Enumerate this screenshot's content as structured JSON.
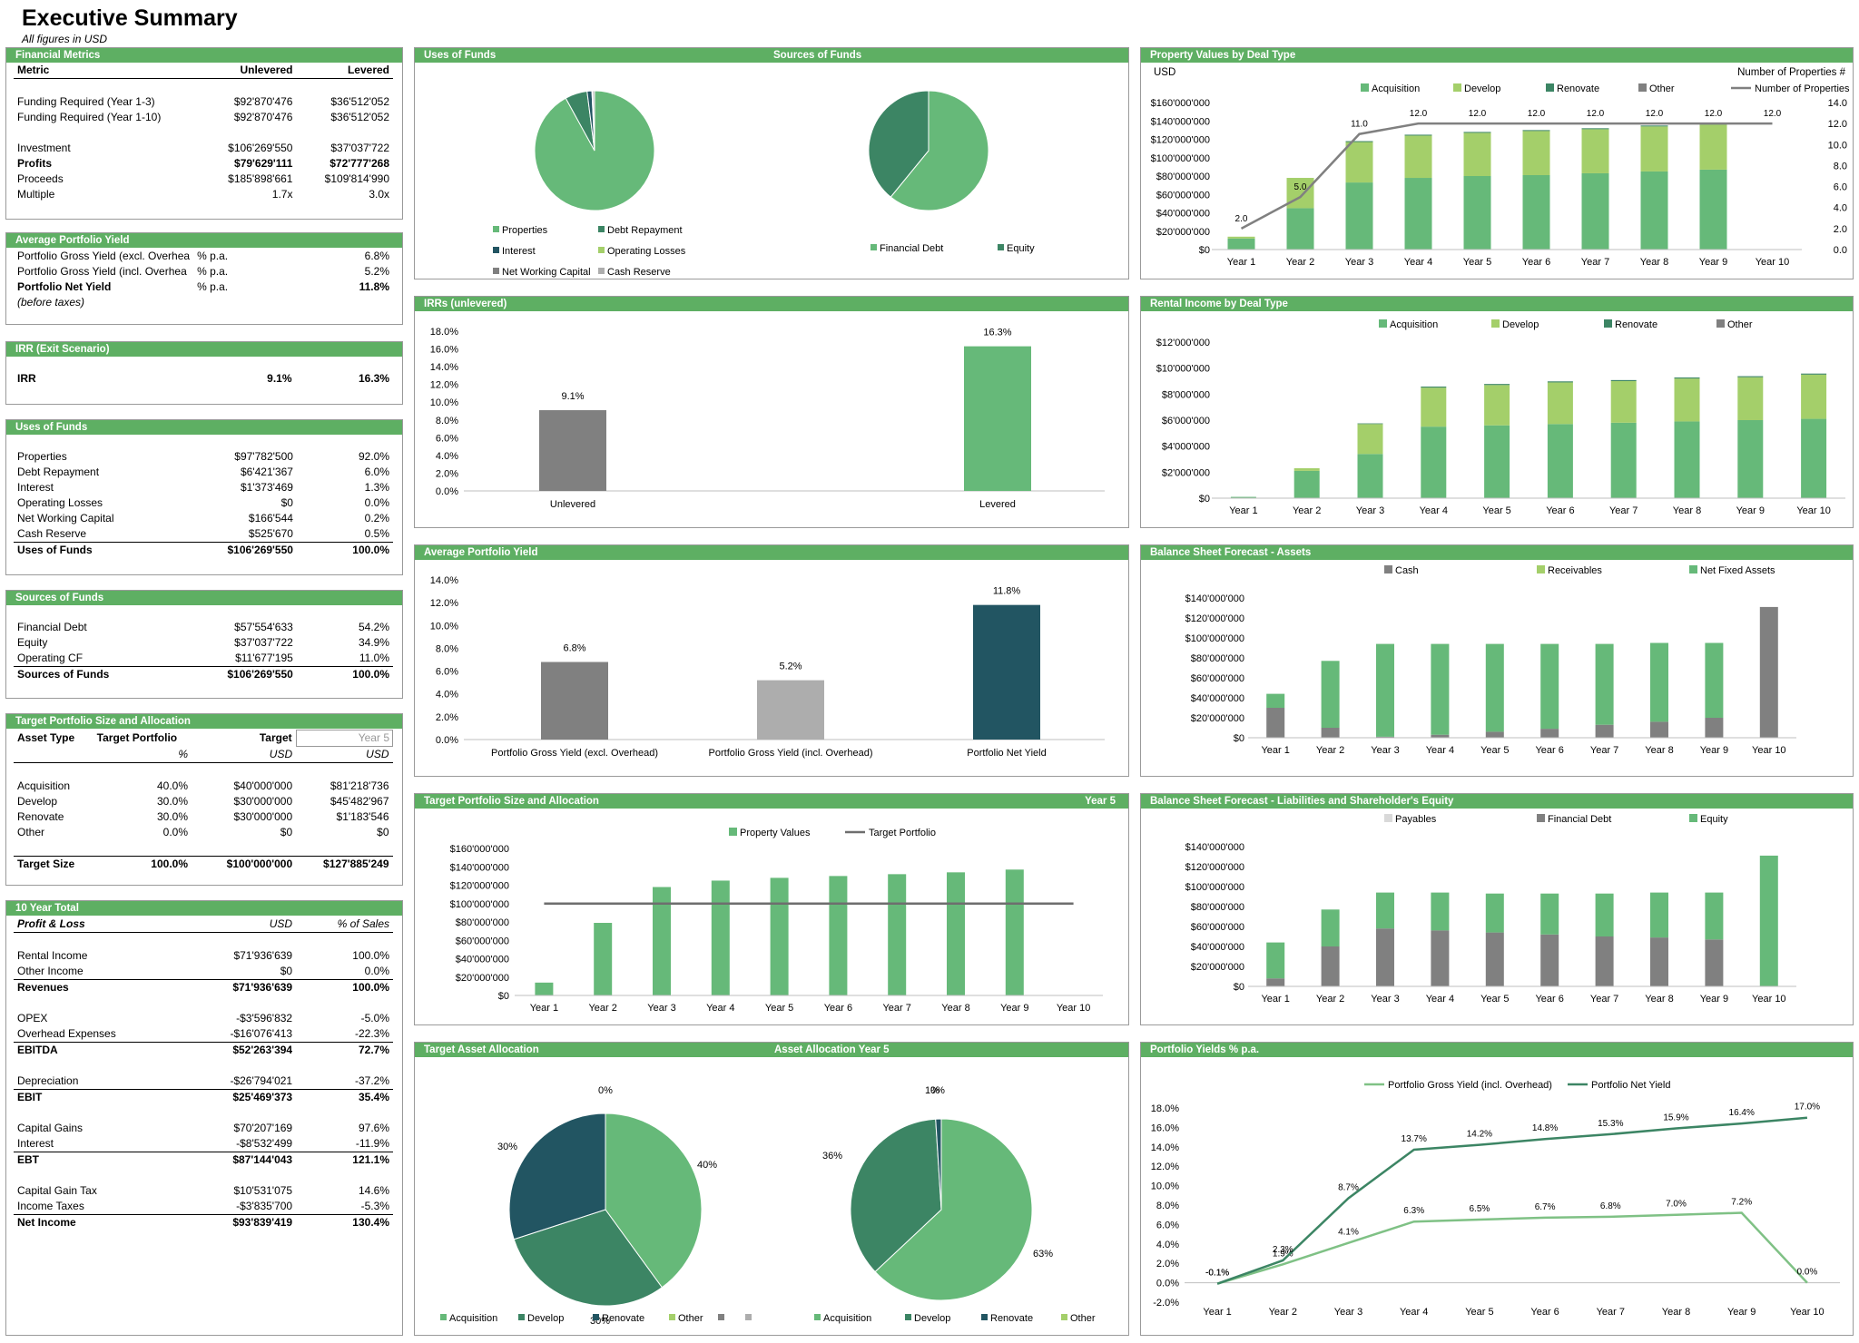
{
  "page": {
    "title": "Executive Summary",
    "subtitle": "All figures in USD"
  },
  "colors": {
    "header_green": "#5eaf63",
    "acquisition": "#66b979",
    "develop": "#a4cf6a",
    "renovate": "#3c8564",
    "other": "#808080",
    "dark_teal": "#225562",
    "light_grey": "#adadad"
  },
  "financial_metrics": {
    "title": "Financial Metrics",
    "columns": [
      "Metric",
      "Unlevered",
      "Levered"
    ],
    "rows": [
      {
        "label": "Funding Required (Year 1-3)",
        "u": "$92'870'476",
        "l": "$36'512'052"
      },
      {
        "label": "Funding Required (Year 1-10)",
        "u": "$92'870'476",
        "l": "$36'512'052"
      },
      {
        "label": "Investment",
        "u": "$106'269'550",
        "l": "$37'037'722"
      },
      {
        "label": "Profits",
        "u": "$79'629'111",
        "l": "$72'777'268"
      },
      {
        "label": "Proceeds",
        "u": "$185'898'661",
        "l": "$109'814'990"
      },
      {
        "label": "Multiple",
        "u": "1.7x",
        "l": "3.0x"
      }
    ]
  },
  "avg_yield": {
    "title": "Average Portfolio Yield",
    "rows": [
      {
        "label": "Portfolio Gross Yield (excl. Overhea",
        "unit": "% p.a.",
        "v": "6.8%"
      },
      {
        "label": "Portfolio Gross Yield (incl. Overhea",
        "unit": "% p.a.",
        "v": "5.2%"
      },
      {
        "label": "Portfolio Net Yield",
        "unit": "% p.a.",
        "v": "11.8%"
      }
    ],
    "note": "(before taxes)"
  },
  "irr_exit": {
    "title": "IRR (Exit Scenario)",
    "label": "IRR",
    "u": "9.1%",
    "l": "16.3%"
  },
  "uses": {
    "title": "Uses of Funds",
    "rows": [
      {
        "label": "Properties",
        "v": "$97'782'500",
        "p": "92.0%"
      },
      {
        "label": "Debt Repayment",
        "v": "$6'421'367",
        "p": "6.0%"
      },
      {
        "label": "Interest",
        "v": "$1'373'469",
        "p": "1.3%"
      },
      {
        "label": "Operating Losses",
        "v": "$0",
        "p": "0.0%"
      },
      {
        "label": "Net Working Capital",
        "v": "$166'544",
        "p": "0.2%"
      },
      {
        "label": "Cash Reserve",
        "v": "$525'670",
        "p": "0.5%"
      }
    ],
    "total": {
      "label": "Uses of Funds",
      "v": "$106'269'550",
      "p": "100.0%"
    }
  },
  "sources": {
    "title": "Sources of Funds",
    "rows": [
      {
        "label": "Financial Debt",
        "v": "$57'554'633",
        "p": "54.2%"
      },
      {
        "label": "Equity",
        "v": "$37'037'722",
        "p": "34.9%"
      },
      {
        "label": "Operating CF",
        "v": "$11'677'195",
        "p": "11.0%"
      }
    ],
    "total": {
      "label": "Sources of Funds",
      "v": "$106'269'550",
      "p": "100.0%"
    }
  },
  "target": {
    "title": "Target Portfolio Size and Allocation",
    "h1": [
      "Asset Type",
      "Target Portfolio",
      "Target",
      "Year 5"
    ],
    "h2": [
      "%",
      "USD",
      "USD"
    ],
    "rows": [
      {
        "label": "Acquisition",
        "p": "40.0%",
        "t": "$40'000'000",
        "y": "$81'218'736"
      },
      {
        "label": "Develop",
        "p": "30.0%",
        "t": "$30'000'000",
        "y": "$45'482'967"
      },
      {
        "label": "Renovate",
        "p": "30.0%",
        "t": "$30'000'000",
        "y": "$1'183'546"
      },
      {
        "label": "Other",
        "p": "0.0%",
        "t": "$0",
        "y": "$0"
      }
    ],
    "total": {
      "label": "Target Size",
      "p": "100.0%",
      "t": "$100'000'000",
      "y": "$127'885'249"
    }
  },
  "ten_year": {
    "title": "10 Year Total",
    "h": [
      "Profit & Loss",
      "USD",
      "% of Sales"
    ],
    "groups": [
      {
        "rows": [
          {
            "label": "Rental Income",
            "v": "$71'936'639",
            "p": "100.0%"
          },
          {
            "label": "Other Income",
            "v": "$0",
            "p": "0.0%"
          }
        ],
        "total": {
          "label": "Revenues",
          "v": "$71'936'639",
          "p": "100.0%"
        }
      },
      {
        "rows": [
          {
            "label": "OPEX",
            "v": "-$3'596'832",
            "p": "-5.0%"
          },
          {
            "label": "Overhead Expenses",
            "v": "-$16'076'413",
            "p": "-22.3%"
          }
        ],
        "total": {
          "label": "EBITDA",
          "v": "$52'263'394",
          "p": "72.7%"
        }
      },
      {
        "rows": [
          {
            "label": "Depreciation",
            "v": "-$26'794'021",
            "p": "-37.2%"
          }
        ],
        "total": {
          "label": "EBIT",
          "v": "$25'469'373",
          "p": "35.4%"
        }
      },
      {
        "rows": [
          {
            "label": "Capital Gains",
            "v": "$70'207'169",
            "p": "97.6%"
          },
          {
            "label": "Interest",
            "v": "-$8'532'499",
            "p": "-11.9%"
          }
        ],
        "total": {
          "label": "EBT",
          "v": "$87'144'043",
          "p": "121.1%"
        }
      },
      {
        "rows": [
          {
            "label": "Capital Gain Tax",
            "v": "$10'531'075",
            "p": "14.6%"
          },
          {
            "label": "Income Taxes",
            "v": "-$3'835'700",
            "p": "-5.3%"
          }
        ],
        "total": {
          "label": "Net Income",
          "v": "$93'839'419",
          "p": "130.4%"
        }
      }
    ]
  },
  "chart_titles": {
    "uses_sources": "Uses of Funds",
    "uses_sources_right": "Sources of Funds",
    "property_values": "Property Values by Deal Type",
    "irrs": "IRRs (unlevered)",
    "rental": "Rental Income by Deal Type",
    "avg_yield": "Average Portfolio Yield",
    "bs_assets": "Balance Sheet Forecast - Assets",
    "target_alloc": "Target Portfolio Size and Allocation",
    "target_alloc_right": "Year 5",
    "bs_liab": "Balance Sheet Forecast - Liabilities and Shareholder's Equity",
    "asset_alloc": "Target Asset Allocation",
    "asset_alloc_right": "Asset Allocation Year 5",
    "yields": "Portfolio Yields % p.a."
  },
  "chart_data": [
    {
      "id": "uses_pie",
      "type": "pie",
      "labels": [
        "Properties",
        "Debt Repayment",
        "Interest",
        "Operating Losses",
        "Net Working Capital",
        "Cash Reserve"
      ],
      "values": [
        92.0,
        6.0,
        1.3,
        0.0,
        0.2,
        0.5
      ],
      "colors": [
        "#66b979",
        "#3c8564",
        "#225562",
        "#a4cf6a",
        "#808080",
        "#adadad"
      ]
    },
    {
      "id": "sources_pie",
      "type": "pie",
      "labels": [
        "Financial Debt",
        "Equity"
      ],
      "values": [
        60.9,
        39.1
      ],
      "colors": [
        "#66b979",
        "#3c8564"
      ]
    },
    {
      "id": "property_values",
      "type": "bar",
      "ylabel_left": "USD",
      "ylabel_right": "Number of Properties #",
      "categories": [
        "Year 1",
        "Year 2",
        "Year 3",
        "Year 4",
        "Year 5",
        "Year 6",
        "Year 7",
        "Year 8",
        "Year 9",
        "Year 10"
      ],
      "series": [
        {
          "name": "Acquisition",
          "values": [
            12,
            45,
            73,
            78,
            80,
            81,
            83,
            85,
            87,
            0
          ],
          "color": "#66b979"
        },
        {
          "name": "Develop",
          "values": [
            2,
            33,
            44,
            46,
            47,
            48,
            48,
            49,
            49,
            0
          ],
          "color": "#a4cf6a"
        },
        {
          "name": "Renovate",
          "values": [
            0,
            0,
            1,
            1,
            1,
            1,
            1,
            1,
            1,
            0
          ],
          "color": "#3c8564"
        },
        {
          "name": "Other",
          "values": [
            0,
            0,
            0,
            0,
            0,
            0,
            0,
            0,
            0,
            0
          ],
          "color": "#808080"
        }
      ],
      "line": {
        "name": "Number of Properties",
        "values": [
          2.0,
          5.0,
          11.0,
          12.0,
          12.0,
          12.0,
          12.0,
          12.0,
          12.0,
          12.0
        ],
        "labels": [
          "2.0",
          "5.0",
          "11.0",
          "12.0",
          "12.0",
          "12.0",
          "12.0",
          "12.0",
          "12.0",
          "12.0"
        ],
        "color": "#808080"
      },
      "yticks": [
        "$0",
        "$20'000'000",
        "$40'000'000",
        "$60'000'000",
        "$80'000'000",
        "$100'000'000",
        "$120'000'000",
        "$140'000'000",
        "$160'000'000"
      ],
      "ylim": [
        0,
        160
      ],
      "y2ticks": [
        "0.0",
        "2.0",
        "4.0",
        "6.0",
        "8.0",
        "10.0",
        "12.0",
        "14.0"
      ],
      "y2lim": [
        0,
        14
      ]
    },
    {
      "id": "irrs",
      "type": "bar",
      "categories": [
        "Unlevered",
        "Levered"
      ],
      "values": [
        9.1,
        16.3
      ],
      "labels": [
        "9.1%",
        "16.3%"
      ],
      "colors": [
        "#808080",
        "#66b979"
      ],
      "yticks": [
        "0.0%",
        "2.0%",
        "4.0%",
        "6.0%",
        "8.0%",
        "10.0%",
        "12.0%",
        "14.0%",
        "16.0%",
        "18.0%"
      ],
      "ylim": [
        0,
        18
      ]
    },
    {
      "id": "rental",
      "type": "bar",
      "categories": [
        "Year 1",
        "Year 2",
        "Year 3",
        "Year 4",
        "Year 5",
        "Year 6",
        "Year 7",
        "Year 8",
        "Year 9",
        "Year 10"
      ],
      "series": [
        {
          "name": "Acquisition",
          "values": [
            0.1,
            2.1,
            3.4,
            5.5,
            5.6,
            5.7,
            5.8,
            5.9,
            6.0,
            6.1
          ],
          "color": "#66b979"
        },
        {
          "name": "Develop",
          "values": [
            0,
            0.2,
            2.3,
            3.0,
            3.1,
            3.2,
            3.2,
            3.3,
            3.3,
            3.4
          ],
          "color": "#a4cf6a"
        },
        {
          "name": "Renovate",
          "values": [
            0,
            0,
            0.05,
            0.08,
            0.08,
            0.08,
            0.08,
            0.08,
            0.08,
            0.08
          ],
          "color": "#3c8564"
        },
        {
          "name": "Other",
          "values": [
            0,
            0,
            0,
            0,
            0,
            0,
            0,
            0,
            0,
            0
          ],
          "color": "#808080"
        }
      ],
      "yticks": [
        "$0",
        "$2'000'000",
        "$4'000'000",
        "$6'000'000",
        "$8'000'000",
        "$10'000'000",
        "$12'000'000"
      ],
      "ylim": [
        0,
        12
      ]
    },
    {
      "id": "avg_yield_chart",
      "type": "bar",
      "categories": [
        "Portfolio Gross Yield (excl. Overhead)",
        "Portfolio Gross Yield (incl. Overhead)",
        "Portfolio Net Yield"
      ],
      "values": [
        6.8,
        5.2,
        11.8
      ],
      "labels": [
        "6.8%",
        "5.2%",
        "11.8%"
      ],
      "colors": [
        "#808080",
        "#adadad",
        "#225562"
      ],
      "yticks": [
        "0.0%",
        "2.0%",
        "4.0%",
        "6.0%",
        "8.0%",
        "10.0%",
        "12.0%",
        "14.0%"
      ],
      "ylim": [
        0,
        14
      ]
    },
    {
      "id": "bs_assets",
      "type": "bar",
      "categories": [
        "Year 1",
        "Year 2",
        "Year 3",
        "Year 4",
        "Year 5",
        "Year 6",
        "Year 7",
        "Year 8",
        "Year 9",
        "Year 10"
      ],
      "series": [
        {
          "name": "Cash",
          "values": [
            30,
            10,
            1,
            3,
            6,
            9,
            13,
            16,
            20,
            131
          ],
          "color": "#808080"
        },
        {
          "name": "Receivables",
          "values": [
            0,
            0,
            0,
            0,
            0,
            0,
            0,
            0,
            0,
            0
          ],
          "color": "#a4cf6a"
        },
        {
          "name": "Net Fixed Assets",
          "values": [
            14,
            67,
            93,
            91,
            88,
            85,
            81,
            79,
            75,
            0
          ],
          "color": "#66b979"
        }
      ],
      "yticks": [
        "$0",
        "$20'000'000",
        "$40'000'000",
        "$60'000'000",
        "$80'000'000",
        "$100'000'000",
        "$120'000'000",
        "$140'000'000"
      ],
      "ylim": [
        0,
        140
      ]
    },
    {
      "id": "target_alloc",
      "type": "bar",
      "categories": [
        "Year 1",
        "Year 2",
        "Year 3",
        "Year 4",
        "Year 5",
        "Year 6",
        "Year 7",
        "Year 8",
        "Year 9",
        "Year 10"
      ],
      "series": [
        {
          "name": "Property Values",
          "values": [
            14,
            79,
            118,
            125,
            128,
            130,
            132,
            134,
            137,
            0
          ],
          "color": "#66b979"
        }
      ],
      "line": {
        "name": "Target Portfolio",
        "values": [
          100,
          100,
          100,
          100,
          100,
          100,
          100,
          100,
          100,
          100
        ],
        "color": "#6e6e6e"
      },
      "yticks": [
        "$0",
        "$20'000'000",
        "$40'000'000",
        "$60'000'000",
        "$80'000'000",
        "$100'000'000",
        "$120'000'000",
        "$140'000'000",
        "$160'000'000"
      ],
      "ylim": [
        0,
        160
      ]
    },
    {
      "id": "bs_liab",
      "type": "bar",
      "categories": [
        "Year 1",
        "Year 2",
        "Year 3",
        "Year 4",
        "Year 5",
        "Year 6",
        "Year 7",
        "Year 8",
        "Year 9",
        "Year 10"
      ],
      "series": [
        {
          "name": "Payables",
          "values": [
            0,
            0,
            0,
            0,
            0,
            0,
            0,
            0,
            0,
            0
          ],
          "color": "#d9d9d9"
        },
        {
          "name": "Financial Debt",
          "values": [
            8,
            40,
            58,
            56,
            54,
            52,
            50,
            49,
            47,
            0
          ],
          "color": "#808080"
        },
        {
          "name": "Equity",
          "values": [
            36,
            37,
            36,
            38,
            39,
            41,
            43,
            45,
            47,
            131
          ],
          "color": "#66b979"
        }
      ],
      "yticks": [
        "$0",
        "$20'000'000",
        "$40'000'000",
        "$60'000'000",
        "$80'000'000",
        "$100'000'000",
        "$120'000'000",
        "$140'000'000"
      ],
      "ylim": [
        0,
        140
      ]
    },
    {
      "id": "target_pie",
      "type": "pie",
      "labels": [
        "Acquisition",
        "Develop",
        "Renovate",
        "Other"
      ],
      "values": [
        40,
        30,
        30,
        0
      ],
      "value_labels": [
        "40%",
        "30%",
        "30%",
        "0%"
      ],
      "colors": [
        "#66b979",
        "#3c8564",
        "#225562",
        "#a4cf6a"
      ]
    },
    {
      "id": "year5_pie",
      "type": "pie",
      "labels": [
        "Acquisition",
        "Develop",
        "Renovate",
        "Other"
      ],
      "values": [
        63,
        36,
        1,
        0
      ],
      "value_labels": [
        "63%",
        "36%",
        "1%",
        "0%"
      ],
      "colors": [
        "#66b979",
        "#3c8564",
        "#225562",
        "#a4cf6a"
      ]
    },
    {
      "id": "yields",
      "type": "line",
      "categories": [
        "Year 1",
        "Year 2",
        "Year 3",
        "Year 4",
        "Year 5",
        "Year 6",
        "Year 7",
        "Year 8",
        "Year 9",
        "Year 10"
      ],
      "series": [
        {
          "name": "Portfolio Gross Yield (incl. Overhead)",
          "values": [
            -0.1,
            1.9,
            4.1,
            6.3,
            6.5,
            6.7,
            6.8,
            7.0,
            7.2,
            0.0
          ],
          "labels": [
            "-0.1%",
            "1.9%",
            "4.1%",
            "6.3%",
            "6.5%",
            "6.7%",
            "6.8%",
            "7.0%",
            "7.2%",
            "0.0%"
          ],
          "color": "#7fc185"
        },
        {
          "name": "Portfolio Net Yield",
          "values": [
            -0.1,
            2.3,
            8.7,
            13.7,
            14.2,
            14.8,
            15.3,
            15.9,
            16.4,
            17.0
          ],
          "labels": [
            "-0.1%",
            "2.3%",
            "8.7%",
            "13.7%",
            "14.2%",
            "14.8%",
            "15.3%",
            "15.9%",
            "16.4%",
            "17.0%"
          ],
          "color": "#3c8564"
        }
      ],
      "yticks": [
        "-2.0%",
        "0.0%",
        "2.0%",
        "4.0%",
        "6.0%",
        "8.0%",
        "10.0%",
        "12.0%",
        "14.0%",
        "16.0%",
        "18.0%"
      ],
      "ylim": [
        -2,
        18
      ]
    }
  ]
}
